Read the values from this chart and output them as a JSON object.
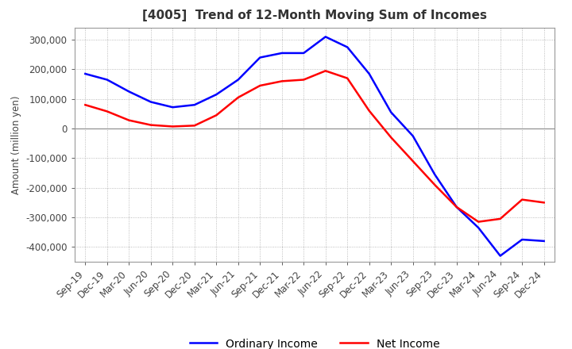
{
  "title": "[4005]  Trend of 12-Month Moving Sum of Incomes",
  "ylabel": "Amount (million yen)",
  "ylim": [
    -450000,
    340000
  ],
  "yticks": [
    -400000,
    -300000,
    -200000,
    -100000,
    0,
    100000,
    200000,
    300000
  ],
  "background_color": "#ffffff",
  "grid_color": "#aaaaaa",
  "x_labels": [
    "Sep-19",
    "Dec-19",
    "Mar-20",
    "Jun-20",
    "Sep-20",
    "Dec-20",
    "Mar-21",
    "Jun-21",
    "Sep-21",
    "Dec-21",
    "Mar-22",
    "Jun-22",
    "Sep-22",
    "Dec-22",
    "Mar-23",
    "Jun-23",
    "Sep-23",
    "Dec-23",
    "Mar-24",
    "Jun-24",
    "Sep-24",
    "Dec-24"
  ],
  "ordinary_income": [
    185000,
    165000,
    125000,
    90000,
    72000,
    80000,
    115000,
    165000,
    240000,
    255000,
    255000,
    310000,
    275000,
    185000,
    55000,
    -25000,
    -155000,
    -265000,
    -335000,
    -430000,
    -375000,
    -380000
  ],
  "net_income": [
    80000,
    58000,
    28000,
    12000,
    7000,
    10000,
    45000,
    105000,
    145000,
    160000,
    165000,
    195000,
    170000,
    60000,
    -30000,
    -110000,
    -190000,
    -265000,
    -315000,
    -305000,
    -240000,
    -250000
  ],
  "ordinary_income_color": "#0000ff",
  "net_income_color": "#ff0000",
  "line_width": 1.8,
  "title_fontsize": 11,
  "legend_fontsize": 10,
  "tick_fontsize": 8.5
}
